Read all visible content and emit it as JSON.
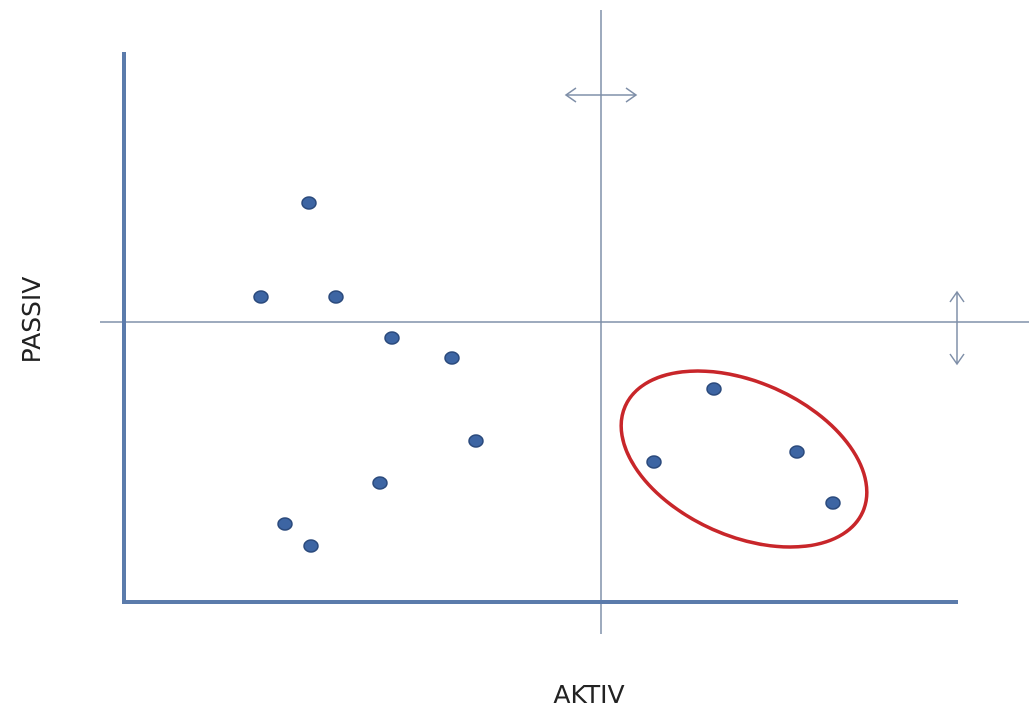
{
  "axes": {
    "x_label": "AKTIV",
    "y_label": "PASSIV"
  }
}
